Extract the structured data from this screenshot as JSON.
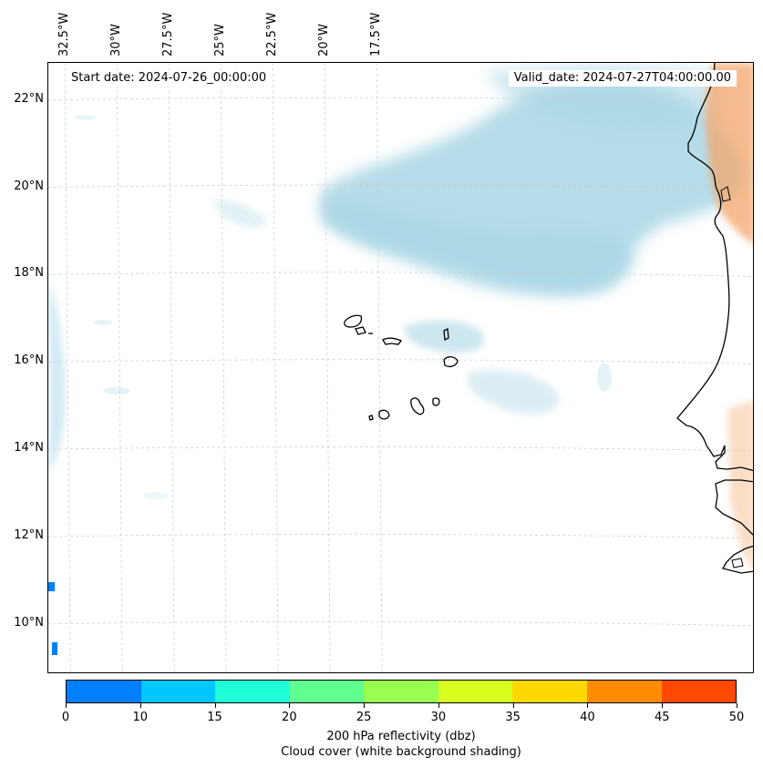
{
  "header": {
    "start_date": "Start date: 2024-07-26_00:00:00",
    "valid_date": "Valid_date: 2024-07-27T04:00:00.00"
  },
  "axes": {
    "longitude_labels": [
      "32.5°W",
      "30°W",
      "27.5°W",
      "25°W",
      "22.5°W",
      "20°W",
      "17.5°W"
    ],
    "longitude_values": [
      -32.5,
      -30,
      -27.5,
      -25,
      -22.5,
      -20,
      -17.5
    ],
    "latitude_labels": [
      "22°N",
      "20°N",
      "18°N",
      "16°N",
      "14°N",
      "12°N",
      "10°N"
    ],
    "latitude_values": [
      22,
      20,
      18,
      16,
      14,
      12,
      10
    ]
  },
  "colorbar": {
    "ticks": [
      "0",
      "10",
      "15",
      "20",
      "25",
      "30",
      "35",
      "40",
      "45",
      "50"
    ],
    "colors": [
      "#0080ff",
      "#00c8ff",
      "#20ffd8",
      "#60ff90",
      "#98ff50",
      "#d8ff20",
      "#ffd800",
      "#ff8c00",
      "#ff4800"
    ],
    "label": "200 hPa reflectivity (dbz)",
    "sublabel": "Cloud cover (white background shading)"
  },
  "colors": {
    "cloud": "#a9d6e5",
    "land_shade": "#f4a66a",
    "coastline": "#000000",
    "gridline": "#c8c8c8",
    "reflectivity_low": "#0080ff"
  }
}
